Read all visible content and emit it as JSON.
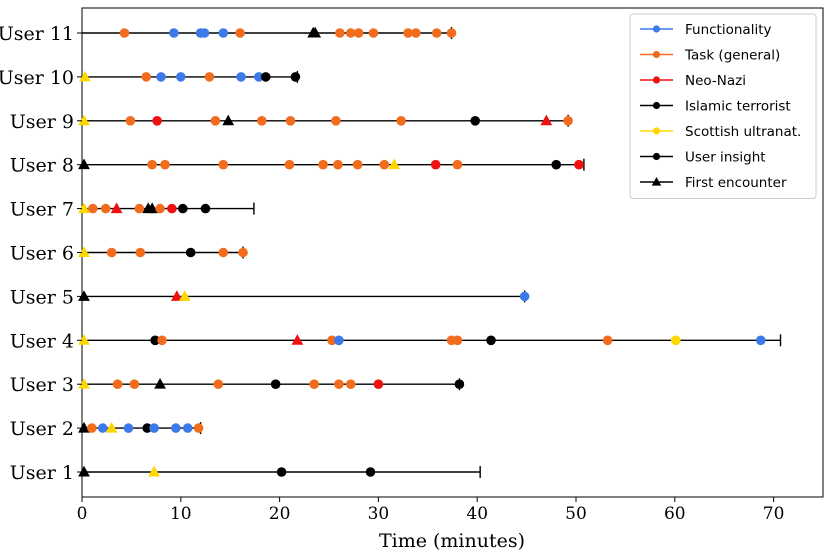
{
  "chart_data": {
    "type": "scatter",
    "xlabel": "Time (minutes)",
    "xlim": [
      0,
      75
    ],
    "x_ticks": [
      0,
      10,
      20,
      30,
      40,
      50,
      60,
      70
    ],
    "legend_position": "top-right",
    "categories": [
      "User 1",
      "User 2",
      "User 3",
      "User 4",
      "User 5",
      "User 6",
      "User 7",
      "User 8",
      "User 9",
      "User 10",
      "User 11"
    ],
    "legend": [
      {
        "key": "functionality",
        "label": "Functionality",
        "color": "#3b7ae8",
        "marker": "circle"
      },
      {
        "key": "task",
        "label": "Task (general)",
        "color": "#f26c1d",
        "marker": "circle"
      },
      {
        "key": "neonazi",
        "label": "Neo-Nazi",
        "color": "#f01010",
        "marker": "circle"
      },
      {
        "key": "islamic",
        "label": "Islamic terrorist",
        "color": "#000000",
        "marker": "circle"
      },
      {
        "key": "scottish",
        "label": "Scottish ultranat.",
        "color": "#ffd700",
        "marker": "circle"
      },
      {
        "key": "insight",
        "label": "User insight",
        "color": "#000000",
        "marker": "circle"
      },
      {
        "key": "first",
        "label": "First encounter",
        "color": "#000000",
        "marker": "triangle"
      }
    ],
    "users": [
      {
        "name": "User 1",
        "end": 40.3,
        "points": [
          {
            "x": 0.2,
            "t": "first",
            "c": "#000000"
          },
          {
            "x": 7.3,
            "t": "first",
            "c": "#ffd700"
          },
          {
            "x": 20.2,
            "t": "insight"
          },
          {
            "x": 29.2,
            "t": "insight"
          }
        ]
      },
      {
        "name": "User 2",
        "end": 12.0,
        "points": [
          {
            "x": 0.2,
            "t": "first",
            "c": "#000000"
          },
          {
            "x": 1.0,
            "t": "task"
          },
          {
            "x": 2.1,
            "t": "functionality"
          },
          {
            "x": 3.0,
            "t": "first",
            "c": "#ffd700"
          },
          {
            "x": 4.7,
            "t": "functionality"
          },
          {
            "x": 6.6,
            "t": "insight"
          },
          {
            "x": 7.3,
            "t": "functionality"
          },
          {
            "x": 9.5,
            "t": "functionality"
          },
          {
            "x": 10.7,
            "t": "functionality"
          },
          {
            "x": 11.8,
            "t": "task"
          }
        ]
      },
      {
        "name": "User 3",
        "end": 38.2,
        "points": [
          {
            "x": 0.2,
            "t": "first",
            "c": "#ffd700"
          },
          {
            "x": 3.6,
            "t": "task"
          },
          {
            "x": 5.3,
            "t": "task"
          },
          {
            "x": 7.9,
            "t": "first",
            "c": "#000000"
          },
          {
            "x": 13.8,
            "t": "task"
          },
          {
            "x": 19.6,
            "t": "insight"
          },
          {
            "x": 23.5,
            "t": "task"
          },
          {
            "x": 26.0,
            "t": "task"
          },
          {
            "x": 27.2,
            "t": "task"
          },
          {
            "x": 30.0,
            "t": "neonazi"
          },
          {
            "x": 38.2,
            "t": "insight"
          }
        ]
      },
      {
        "name": "User 4",
        "end": 70.7,
        "points": [
          {
            "x": 0.2,
            "t": "first",
            "c": "#ffd700"
          },
          {
            "x": 7.4,
            "t": "insight"
          },
          {
            "x": 8.1,
            "t": "task"
          },
          {
            "x": 21.8,
            "t": "first",
            "c": "#f01010"
          },
          {
            "x": 25.3,
            "t": "task"
          },
          {
            "x": 26.0,
            "t": "functionality"
          },
          {
            "x": 37.4,
            "t": "task"
          },
          {
            "x": 38.0,
            "t": "task"
          },
          {
            "x": 41.4,
            "t": "insight"
          },
          {
            "x": 53.2,
            "t": "task"
          },
          {
            "x": 60.1,
            "t": "scottish"
          },
          {
            "x": 68.7,
            "t": "functionality"
          }
        ]
      },
      {
        "name": "User 5",
        "end": 44.8,
        "points": [
          {
            "x": 0.2,
            "t": "first",
            "c": "#000000"
          },
          {
            "x": 9.6,
            "t": "first",
            "c": "#f01010"
          },
          {
            "x": 10.4,
            "t": "first",
            "c": "#ffd700"
          },
          {
            "x": 44.8,
            "t": "functionality"
          }
        ]
      },
      {
        "name": "User 6",
        "end": 16.3,
        "points": [
          {
            "x": 0.2,
            "t": "first",
            "c": "#ffd700"
          },
          {
            "x": 3.0,
            "t": "task"
          },
          {
            "x": 5.9,
            "t": "task"
          },
          {
            "x": 11.0,
            "t": "insight"
          },
          {
            "x": 14.3,
            "t": "task"
          },
          {
            "x": 16.3,
            "t": "task"
          }
        ]
      },
      {
        "name": "User 7",
        "end": 17.4,
        "points": [
          {
            "x": 0.2,
            "t": "first",
            "c": "#ffd700"
          },
          {
            "x": 1.1,
            "t": "task"
          },
          {
            "x": 2.4,
            "t": "task"
          },
          {
            "x": 3.5,
            "t": "first",
            "c": "#f01010"
          },
          {
            "x": 5.8,
            "t": "task"
          },
          {
            "x": 6.7,
            "t": "first",
            "c": "#000000"
          },
          {
            "x": 7.1,
            "t": "first",
            "c": "#000000"
          },
          {
            "x": 7.9,
            "t": "task"
          },
          {
            "x": 9.1,
            "t": "neonazi"
          },
          {
            "x": 10.2,
            "t": "insight"
          },
          {
            "x": 12.5,
            "t": "insight"
          }
        ]
      },
      {
        "name": "User 8",
        "end": 50.8,
        "points": [
          {
            "x": 0.2,
            "t": "first",
            "c": "#000000"
          },
          {
            "x": 7.1,
            "t": "task"
          },
          {
            "x": 8.4,
            "t": "task"
          },
          {
            "x": 14.3,
            "t": "task"
          },
          {
            "x": 21.0,
            "t": "task"
          },
          {
            "x": 24.4,
            "t": "task"
          },
          {
            "x": 25.9,
            "t": "task"
          },
          {
            "x": 27.9,
            "t": "task"
          },
          {
            "x": 30.6,
            "t": "task"
          },
          {
            "x": 31.6,
            "t": "first",
            "c": "#ffd700"
          },
          {
            "x": 35.8,
            "t": "neonazi"
          },
          {
            "x": 38.0,
            "t": "task"
          },
          {
            "x": 48.0,
            "t": "insight"
          },
          {
            "x": 50.3,
            "t": "neonazi"
          }
        ]
      },
      {
        "name": "User 9",
        "end": 49.2,
        "points": [
          {
            "x": 0.2,
            "t": "first",
            "c": "#ffd700"
          },
          {
            "x": 4.9,
            "t": "task"
          },
          {
            "x": 7.6,
            "t": "neonazi"
          },
          {
            "x": 13.5,
            "t": "task"
          },
          {
            "x": 14.8,
            "t": "first",
            "c": "#000000"
          },
          {
            "x": 18.2,
            "t": "task"
          },
          {
            "x": 21.1,
            "t": "task"
          },
          {
            "x": 25.7,
            "t": "task"
          },
          {
            "x": 32.3,
            "t": "task"
          },
          {
            "x": 39.8,
            "t": "insight"
          },
          {
            "x": 47.0,
            "t": "first",
            "c": "#f01010"
          },
          {
            "x": 49.2,
            "t": "task"
          }
        ]
      },
      {
        "name": "User 10",
        "end": 21.8,
        "points": [
          {
            "x": 0.3,
            "t": "first",
            "c": "#ffd700"
          },
          {
            "x": 6.5,
            "t": "task"
          },
          {
            "x": 8.0,
            "t": "functionality"
          },
          {
            "x": 10.0,
            "t": "functionality"
          },
          {
            "x": 12.9,
            "t": "task"
          },
          {
            "x": 16.1,
            "t": "functionality"
          },
          {
            "x": 17.9,
            "t": "functionality"
          },
          {
            "x": 18.6,
            "t": "insight"
          },
          {
            "x": 21.6,
            "t": "insight"
          }
        ]
      },
      {
        "name": "User 11",
        "end": 37.4,
        "points": [
          {
            "x": 4.3,
            "t": "task"
          },
          {
            "x": 9.3,
            "t": "functionality"
          },
          {
            "x": 12.0,
            "t": "functionality"
          },
          {
            "x": 12.4,
            "t": "functionality"
          },
          {
            "x": 14.3,
            "t": "functionality"
          },
          {
            "x": 16.0,
            "t": "task"
          },
          {
            "x": 23.4,
            "t": "first",
            "c": "#000000"
          },
          {
            "x": 23.6,
            "t": "first",
            "c": "#000000"
          },
          {
            "x": 26.1,
            "t": "task"
          },
          {
            "x": 27.2,
            "t": "task"
          },
          {
            "x": 28.0,
            "t": "task"
          },
          {
            "x": 29.5,
            "t": "task"
          },
          {
            "x": 33.0,
            "t": "task"
          },
          {
            "x": 33.8,
            "t": "task"
          },
          {
            "x": 35.9,
            "t": "task"
          },
          {
            "x": 37.4,
            "t": "task"
          }
        ]
      }
    ]
  }
}
